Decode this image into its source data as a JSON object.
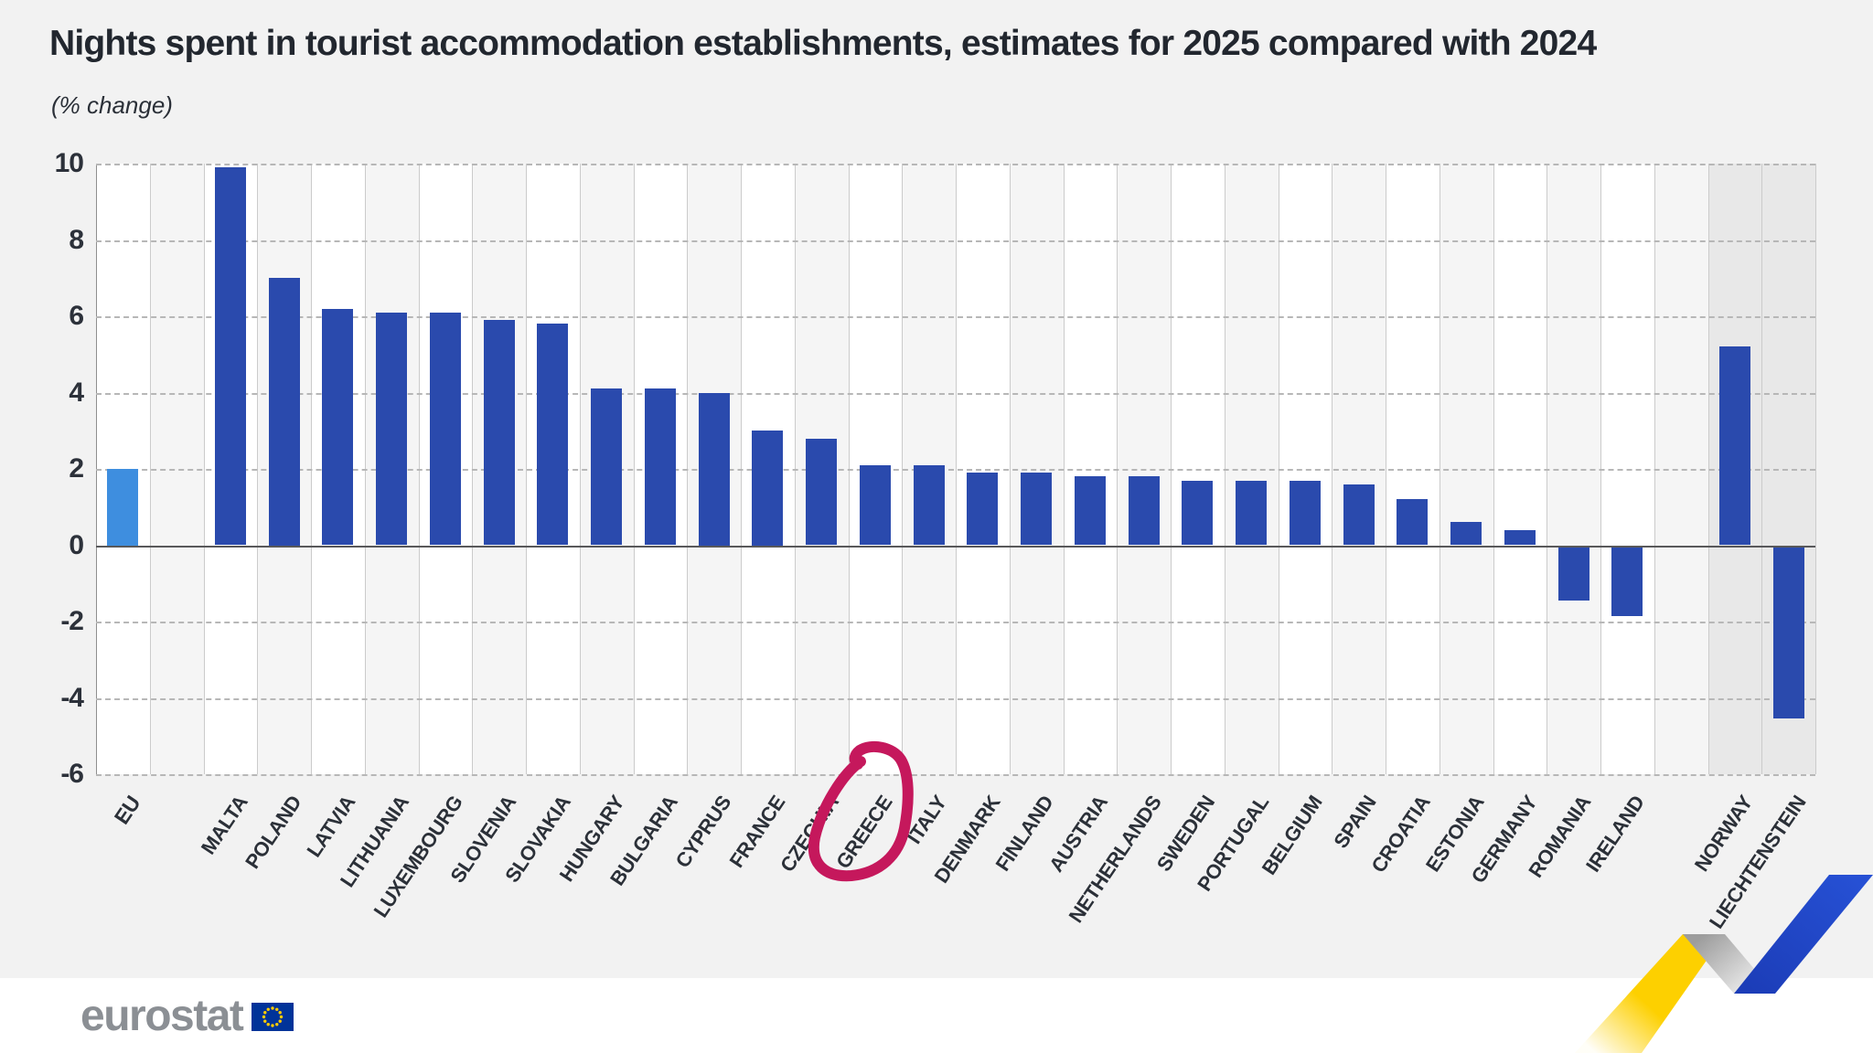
{
  "header": {
    "title": "Nights spent in tourist accommodation establishments, estimates for 2025 compared with 2024",
    "subtitle": "(% change)"
  },
  "chart_data": {
    "type": "bar",
    "title": "Nights spent in tourist accommodation establishments, estimates for 2025 compared with 2024",
    "subtitle": "(% change)",
    "xlabel": "",
    "ylabel": "% change",
    "ylim": [
      -6,
      10
    ],
    "ytick_step": 2,
    "ytick_labels": [
      "-6",
      "-4",
      "-2",
      "0",
      "2",
      "4",
      "6",
      "8",
      "10"
    ],
    "grid": "horizontal-dashed",
    "legend_position": "none",
    "categories": [
      "EU",
      "MALTA",
      "POLAND",
      "LATVIA",
      "LITHUANIA",
      "LUXEMBOURG",
      "SLOVENIA",
      "SLOVAKIA",
      "HUNGARY",
      "BULGARIA",
      "CYPRUS",
      "FRANCE",
      "CZECHIA",
      "GREECE",
      "ITALY",
      "DENMARK",
      "FINLAND",
      "AUSTRIA",
      "NETHERLANDS",
      "SWEDEN",
      "PORTUGAL",
      "BELGIUM",
      "SPAIN",
      "CROATIA",
      "ESTONIA",
      "GERMANY",
      "ROMANIA",
      "IRELAND",
      "NORWAY",
      "LIECHTENSTEIN"
    ],
    "values": [
      2.0,
      9.9,
      7.0,
      6.2,
      6.1,
      6.1,
      5.9,
      5.8,
      4.1,
      4.1,
      4.0,
      3.0,
      2.8,
      2.1,
      2.1,
      1.9,
      1.9,
      1.8,
      1.8,
      1.7,
      1.7,
      1.7,
      1.6,
      1.2,
      0.6,
      0.4,
      -1.4,
      -1.8,
      5.2,
      -4.5
    ],
    "highlight_category": "EU",
    "spacer_after": [
      "EU",
      "IRELAND"
    ],
    "efta_categories": [
      "NORWAY",
      "LIECHTENSTEIN"
    ],
    "annotation": {
      "type": "hand-drawn-circle",
      "target": "GREECE",
      "color": "#c5185c"
    }
  },
  "colors": {
    "bar_blue": "#2a4aad",
    "bar_eu_blue": "#3e8edf",
    "stripe_odd": "#f5f5f5",
    "stripe_even": "#ffffff",
    "stripe_efta": "#e8e8e8",
    "annotation_circle": "#c5185c",
    "ribbon_yellow": "#fdd000",
    "ribbon_blue": "#2148c8",
    "flag_blue": "#003399",
    "flag_stars_yellow": "#ffcc00"
  },
  "footer": {
    "logo_text": "eurostat"
  }
}
